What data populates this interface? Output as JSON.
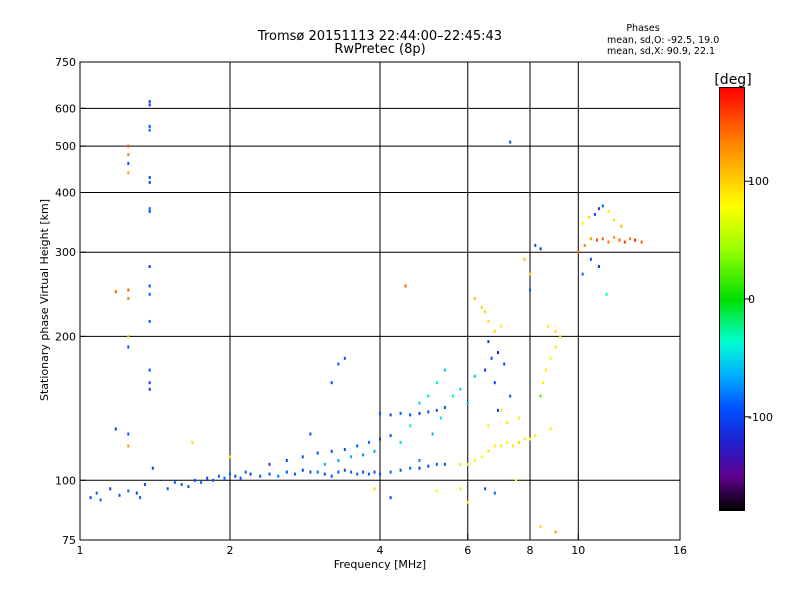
{
  "title": {
    "line1": "Tromsø 20151113 22:44:00–22:45:43",
    "line2": "RwPretec (8p)"
  },
  "phase_stats": {
    "heading": "Phases",
    "o_line": "mean, sd,O: -92.5, 19.0",
    "x_line": "mean, sd,X:  90.9, 22.1"
  },
  "colorbar": {
    "unit_label": "[deg]",
    "ticks": [
      {
        "value": 100,
        "label": "100"
      },
      {
        "value": 0,
        "label": "0"
      },
      {
        "value": -100,
        "label": "-100"
      }
    ],
    "range": [
      -180,
      180
    ]
  },
  "chart_data": {
    "type": "scatter",
    "xlabel": "Frequency [MHz]",
    "ylabel": "Stationary phase Virtual Height [km]",
    "xscale": "log",
    "yscale": "log",
    "xlim": [
      1,
      16
    ],
    "ylim": [
      75,
      750
    ],
    "xticks": [
      {
        "v": 1,
        "t": "1"
      },
      {
        "v": 2,
        "t": "2"
      },
      {
        "v": 4,
        "t": "4"
      },
      {
        "v": 6,
        "t": "6"
      },
      {
        "v": 8,
        "t": "8"
      },
      {
        "v": 10,
        "t": "10"
      },
      {
        "v": 16,
        "t": "16"
      }
    ],
    "yticks": [
      {
        "v": 75,
        "t": "75"
      },
      {
        "v": 100,
        "t": "100"
      },
      {
        "v": 200,
        "t": "200"
      },
      {
        "v": 300,
        "t": "300"
      },
      {
        "v": 400,
        "t": "400"
      },
      {
        "v": 500,
        "t": "500"
      },
      {
        "v": 600,
        "t": "600"
      },
      {
        "v": 750,
        "t": "750"
      }
    ],
    "xgrid": [
      2,
      4,
      6,
      8,
      10
    ],
    "ygrid": [
      100,
      200,
      300,
      400,
      500,
      600
    ],
    "color_metric": "phase [deg]",
    "series": [
      {
        "values": [
          [
            1.05,
            92,
            -100
          ],
          [
            1.08,
            94,
            -95
          ],
          [
            1.1,
            91,
            -90
          ],
          [
            1.15,
            96,
            -110
          ],
          [
            1.2,
            93,
            -100
          ],
          [
            1.25,
            95,
            -85
          ],
          [
            1.3,
            94,
            -105
          ],
          [
            1.32,
            92,
            -95
          ],
          [
            1.35,
            98,
            -100
          ],
          [
            1.4,
            106,
            -110
          ],
          [
            1.5,
            96,
            -100
          ],
          [
            1.55,
            99,
            -90
          ],
          [
            1.6,
            98,
            -95
          ],
          [
            1.65,
            97,
            -100
          ],
          [
            1.7,
            100,
            -100
          ],
          [
            1.75,
            99,
            -85
          ],
          [
            1.8,
            101,
            -110
          ],
          [
            1.85,
            100,
            -95
          ],
          [
            1.9,
            102,
            -100
          ],
          [
            1.95,
            101,
            -90
          ],
          [
            2.0,
            103,
            -95
          ],
          [
            2.05,
            102,
            -105
          ],
          [
            2.1,
            101,
            -100
          ],
          [
            2.15,
            104,
            -90
          ],
          [
            2.2,
            103,
            -110
          ],
          [
            2.3,
            102,
            -95
          ],
          [
            2.4,
            103,
            -100
          ],
          [
            2.5,
            102,
            -85
          ],
          [
            2.6,
            104,
            -100
          ],
          [
            2.7,
            103,
            -95
          ],
          [
            2.8,
            105,
            -110
          ],
          [
            2.9,
            104,
            -100
          ],
          [
            3.0,
            104,
            -90
          ],
          [
            3.1,
            103,
            -100
          ],
          [
            3.2,
            102,
            -95
          ],
          [
            3.3,
            104,
            -100
          ],
          [
            3.4,
            105,
            -105
          ],
          [
            3.5,
            104,
            -95
          ],
          [
            3.6,
            103,
            -90
          ],
          [
            3.7,
            104,
            -100
          ],
          [
            3.8,
            103,
            -95
          ],
          [
            3.9,
            104,
            -100
          ],
          [
            4.0,
            103,
            -100
          ],
          [
            4.2,
            104,
            -95
          ],
          [
            4.4,
            105,
            -100
          ],
          [
            4.6,
            106,
            -90
          ],
          [
            4.8,
            106,
            -105
          ],
          [
            5.0,
            107,
            -100
          ],
          [
            5.2,
            108,
            -95
          ],
          [
            5.4,
            108,
            -100
          ]
        ]
      },
      {
        "values": [
          [
            2.4,
            108,
            -110
          ],
          [
            2.6,
            110,
            -100
          ],
          [
            2.8,
            112,
            -95
          ],
          [
            3.0,
            114,
            -100
          ],
          [
            3.2,
            115,
            -105
          ],
          [
            3.4,
            116,
            -100
          ],
          [
            3.6,
            118,
            -95
          ],
          [
            3.8,
            120,
            -90
          ],
          [
            4.0,
            122,
            -110
          ],
          [
            4.2,
            124,
            -100
          ]
        ]
      },
      {
        "values": [
          [
            3.1,
            108,
            -60
          ],
          [
            3.3,
            110,
            -70
          ],
          [
            3.5,
            112,
            -60
          ],
          [
            3.7,
            113,
            -75
          ],
          [
            3.9,
            115,
            -65
          ]
        ]
      },
      {
        "values": [
          [
            4.0,
            138,
            -100
          ],
          [
            4.2,
            137,
            -105
          ],
          [
            4.4,
            138,
            -95
          ],
          [
            4.6,
            137,
            -100
          ],
          [
            4.8,
            138,
            -110
          ],
          [
            5.0,
            139,
            -100
          ],
          [
            5.2,
            140,
            -95
          ],
          [
            5.4,
            142,
            -100
          ]
        ]
      },
      {
        "values": [
          [
            4.4,
            120,
            -40
          ],
          [
            4.6,
            130,
            -30
          ],
          [
            4.8,
            145,
            -45
          ],
          [
            5.0,
            150,
            -20
          ],
          [
            5.2,
            160,
            -35
          ],
          [
            5.4,
            170,
            -50
          ],
          [
            5.1,
            125,
            -60
          ],
          [
            5.3,
            135,
            -40
          ],
          [
            5.6,
            150,
            -30
          ],
          [
            5.8,
            155,
            -45
          ],
          [
            6.0,
            145,
            -60
          ],
          [
            6.2,
            165,
            -50
          ]
        ]
      },
      {
        "values": [
          [
            6.2,
            110,
            100
          ],
          [
            6.4,
            112,
            95
          ],
          [
            6.6,
            115,
            105
          ],
          [
            6.8,
            118,
            100
          ],
          [
            7.0,
            118,
            100
          ],
          [
            7.2,
            120,
            95
          ],
          [
            7.4,
            118,
            100
          ],
          [
            7.6,
            120,
            110
          ],
          [
            7.8,
            122,
            100
          ],
          [
            8.0,
            122,
            95
          ],
          [
            8.2,
            124,
            100
          ],
          [
            5.8,
            108,
            105
          ],
          [
            6.0,
            108,
            100
          ],
          [
            6.6,
            130,
            100
          ],
          [
            7.0,
            140,
            95
          ],
          [
            7.2,
            132,
            105
          ],
          [
            7.6,
            135,
            100
          ]
        ]
      },
      {
        "values": [
          [
            6.5,
            170,
            -110
          ],
          [
            6.7,
            180,
            -100
          ],
          [
            6.9,
            185,
            -120
          ],
          [
            7.1,
            175,
            -105
          ],
          [
            6.6,
            195,
            -110
          ],
          [
            6.8,
            160,
            -100
          ],
          [
            7.3,
            150,
            -95
          ],
          [
            6.9,
            140,
            -105
          ]
        ]
      },
      {
        "values": [
          [
            6.2,
            240,
            120
          ],
          [
            6.4,
            230,
            110
          ],
          [
            6.5,
            225,
            115
          ],
          [
            6.6,
            215,
            105
          ],
          [
            7.0,
            210,
            100
          ],
          [
            6.8,
            205,
            110
          ]
        ]
      },
      {
        "values": [
          [
            8.6,
            170,
            100
          ],
          [
            8.8,
            180,
            95
          ],
          [
            9.0,
            190,
            105
          ],
          [
            9.2,
            200,
            100
          ],
          [
            9.0,
            205,
            110
          ],
          [
            8.7,
            210,
            100
          ],
          [
            8.5,
            160,
            95
          ],
          [
            8.4,
            150,
            30
          ]
        ]
      },
      {
        "values": [
          [
            8.2,
            310,
            -100
          ],
          [
            8.4,
            305,
            -110
          ],
          [
            7.8,
            290,
            120
          ],
          [
            8.0,
            270,
            115
          ],
          [
            8.0,
            250,
            -100
          ]
        ]
      },
      {
        "values": [
          [
            10.0,
            300,
            150
          ],
          [
            10.3,
            310,
            140
          ],
          [
            10.6,
            320,
            130
          ],
          [
            10.9,
            318,
            160
          ],
          [
            11.2,
            320,
            150
          ],
          [
            11.5,
            315,
            140
          ],
          [
            11.8,
            322,
            130
          ],
          [
            12.1,
            318,
            150
          ],
          [
            12.4,
            315,
            160
          ],
          [
            12.7,
            320,
            140
          ],
          [
            13.0,
            318,
            170
          ],
          [
            13.4,
            315,
            150
          ],
          [
            10.2,
            345,
            100
          ],
          [
            10.5,
            355,
            110
          ],
          [
            10.8,
            360,
            -100
          ],
          [
            11.0,
            370,
            -110
          ],
          [
            11.2,
            375,
            -90
          ],
          [
            11.5,
            365,
            100
          ],
          [
            11.8,
            350,
            110
          ],
          [
            12.2,
            340,
            120
          ],
          [
            10.6,
            290,
            -100
          ],
          [
            11.0,
            280,
            -110
          ],
          [
            10.2,
            270,
            -90
          ],
          [
            11.4,
            245,
            -30
          ]
        ]
      },
      {
        "values": [
          [
            1.38,
            620,
            -100
          ],
          [
            1.38,
            610,
            -110
          ],
          [
            1.38,
            550,
            -100
          ],
          [
            1.38,
            540,
            -95
          ],
          [
            1.38,
            430,
            -100
          ],
          [
            1.38,
            420,
            -105
          ],
          [
            1.38,
            370,
            -90
          ],
          [
            1.38,
            365,
            -100
          ],
          [
            1.38,
            280,
            -110
          ],
          [
            1.38,
            255,
            -100
          ],
          [
            1.38,
            245,
            -95
          ],
          [
            1.38,
            215,
            -100
          ],
          [
            1.38,
            170,
            -100
          ],
          [
            1.38,
            160,
            -105
          ],
          [
            1.38,
            155,
            -110
          ]
        ]
      },
      {
        "values": [
          [
            1.25,
            500,
            150
          ],
          [
            1.25,
            480,
            140
          ],
          [
            1.25,
            460,
            -100
          ],
          [
            1.25,
            440,
            130
          ],
          [
            1.25,
            250,
            150
          ],
          [
            1.25,
            240,
            140
          ],
          [
            1.25,
            200,
            120
          ],
          [
            1.25,
            190,
            -100
          ],
          [
            1.25,
            125,
            -100
          ],
          [
            1.25,
            118,
            130
          ]
        ]
      },
      {
        "values": [
          [
            1.18,
            128,
            -110
          ],
          [
            1.18,
            248,
            150
          ],
          [
            1.68,
            120,
            110
          ],
          [
            2.0,
            112,
            110
          ],
          [
            2.9,
            125,
            -100
          ],
          [
            3.2,
            160,
            -100
          ],
          [
            3.4,
            180,
            -100
          ],
          [
            3.3,
            175,
            -95
          ],
          [
            4.5,
            255,
            150
          ],
          [
            4.8,
            110,
            -80
          ],
          [
            5.2,
            95,
            90
          ],
          [
            5.8,
            96,
            100
          ],
          [
            6.5,
            96,
            -100
          ],
          [
            7.3,
            510,
            -100
          ],
          [
            8.4,
            80,
            110
          ],
          [
            8.8,
            128,
            100
          ],
          [
            9.0,
            78,
            130
          ],
          [
            3.9,
            96,
            110
          ],
          [
            4.2,
            92,
            -100
          ],
          [
            6.0,
            90,
            100
          ],
          [
            6.8,
            94,
            -90
          ],
          [
            7.5,
            100,
            90
          ]
        ]
      }
    ]
  }
}
